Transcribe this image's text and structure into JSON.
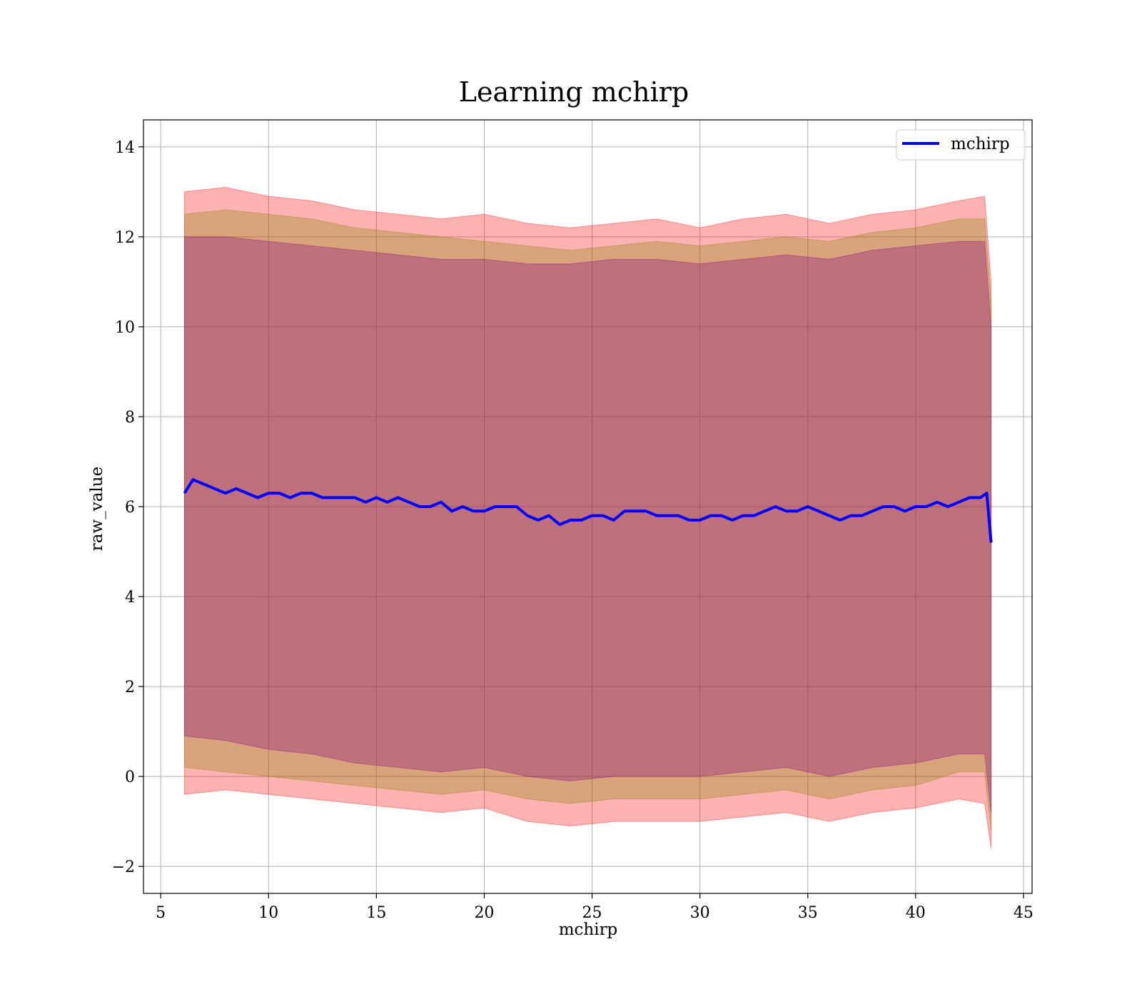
{
  "chart_data": {
    "type": "line",
    "title": "Learning mchirp",
    "xlabel": "mchirp",
    "ylabel": "raw_value",
    "xlim": [
      4.2,
      45.4
    ],
    "ylim": [
      -2.6,
      14.6
    ],
    "xticks": [
      5,
      10,
      15,
      20,
      25,
      30,
      35,
      40,
      45
    ],
    "yticks": [
      -2,
      0,
      2,
      4,
      6,
      8,
      10,
      12,
      14
    ],
    "xtick_labels": [
      "5",
      "10",
      "15",
      "20",
      "25",
      "30",
      "35",
      "40",
      "45"
    ],
    "ytick_labels": [
      "−2",
      "0",
      "2",
      "4",
      "6",
      "8",
      "10",
      "12",
      "14"
    ],
    "grid": true,
    "legend": {
      "position": "top-right",
      "entries": [
        "mchirp"
      ]
    },
    "series": [
      {
        "name": "mchirp",
        "color": "#0000ff",
        "x": [
          6.1,
          6.5,
          7.0,
          7.5,
          8.0,
          8.5,
          9.0,
          9.5,
          10.0,
          10.5,
          11.0,
          11.5,
          12.0,
          12.5,
          13.0,
          13.5,
          14.0,
          14.5,
          15.0,
          15.5,
          16.0,
          16.5,
          17.0,
          17.5,
          18.0,
          18.5,
          19.0,
          19.5,
          20.0,
          20.5,
          21.0,
          21.5,
          22.0,
          22.5,
          23.0,
          23.5,
          24.0,
          24.5,
          25.0,
          25.5,
          26.0,
          26.5,
          27.0,
          27.5,
          28.0,
          28.5,
          29.0,
          29.5,
          30.0,
          30.5,
          31.0,
          31.5,
          32.0,
          32.5,
          33.0,
          33.5,
          34.0,
          34.5,
          35.0,
          35.5,
          36.0,
          36.5,
          37.0,
          37.5,
          38.0,
          38.5,
          39.0,
          39.5,
          40.0,
          40.5,
          41.0,
          41.5,
          42.0,
          42.5,
          43.0,
          43.3,
          43.5
        ],
        "values": [
          6.3,
          6.6,
          6.5,
          6.4,
          6.3,
          6.4,
          6.3,
          6.2,
          6.3,
          6.3,
          6.2,
          6.3,
          6.3,
          6.2,
          6.2,
          6.2,
          6.2,
          6.1,
          6.2,
          6.1,
          6.2,
          6.1,
          6.0,
          6.0,
          6.1,
          5.9,
          6.0,
          5.9,
          5.9,
          6.0,
          6.0,
          6.0,
          5.8,
          5.7,
          5.8,
          5.6,
          5.7,
          5.7,
          5.8,
          5.8,
          5.7,
          5.9,
          5.9,
          5.9,
          5.8,
          5.8,
          5.8,
          5.7,
          5.7,
          5.8,
          5.8,
          5.7,
          5.8,
          5.8,
          5.9,
          6.0,
          5.9,
          5.9,
          6.0,
          5.9,
          5.8,
          5.7,
          5.8,
          5.8,
          5.9,
          6.0,
          6.0,
          5.9,
          6.0,
          6.0,
          6.1,
          6.0,
          6.1,
          6.2,
          6.2,
          6.3,
          5.2
        ]
      }
    ],
    "bands": [
      {
        "color": "#ff0000",
        "opacity": 0.3,
        "x": [
          6.1,
          8,
          10,
          12,
          14,
          16,
          18,
          20,
          22,
          24,
          26,
          28,
          30,
          32,
          34,
          36,
          38,
          40,
          42,
          43.2,
          43.5
        ],
        "upper": [
          13.0,
          13.1,
          12.9,
          12.8,
          12.6,
          12.5,
          12.4,
          12.5,
          12.3,
          12.2,
          12.3,
          12.4,
          12.2,
          12.4,
          12.5,
          12.3,
          12.5,
          12.6,
          12.8,
          12.9,
          11.0
        ],
        "lower": [
          -0.4,
          -0.3,
          -0.4,
          -0.5,
          -0.6,
          -0.7,
          -0.8,
          -0.7,
          -1.0,
          -1.1,
          -1.0,
          -1.0,
          -1.0,
          -0.9,
          -0.8,
          -1.0,
          -0.8,
          -0.7,
          -0.5,
          -0.6,
          -1.6
        ]
      },
      {
        "color": "#808000",
        "opacity": 0.3,
        "x": [
          6.1,
          8,
          10,
          12,
          14,
          16,
          18,
          20,
          22,
          24,
          26,
          28,
          30,
          32,
          34,
          36,
          38,
          40,
          42,
          43.2,
          43.5
        ],
        "upper": [
          12.5,
          12.6,
          12.5,
          12.4,
          12.2,
          12.1,
          12.0,
          11.9,
          11.8,
          11.7,
          11.8,
          11.9,
          11.8,
          11.9,
          12.0,
          11.9,
          12.1,
          12.2,
          12.4,
          12.4,
          10.5
        ],
        "lower": [
          0.2,
          0.1,
          0.0,
          -0.1,
          -0.2,
          -0.3,
          -0.4,
          -0.3,
          -0.5,
          -0.6,
          -0.5,
          -0.5,
          -0.5,
          -0.4,
          -0.3,
          -0.5,
          -0.3,
          -0.2,
          0.1,
          0.1,
          -1.2
        ]
      },
      {
        "color": "#800080",
        "opacity": 0.3,
        "x": [
          6.1,
          8,
          10,
          12,
          14,
          16,
          18,
          20,
          22,
          24,
          26,
          28,
          30,
          32,
          34,
          36,
          38,
          40,
          42,
          43.2,
          43.5
        ],
        "upper": [
          12.0,
          12.0,
          11.9,
          11.8,
          11.7,
          11.6,
          11.5,
          11.5,
          11.4,
          11.4,
          11.5,
          11.5,
          11.4,
          11.5,
          11.6,
          11.5,
          11.7,
          11.8,
          11.9,
          11.9,
          10.0
        ],
        "lower": [
          0.9,
          0.8,
          0.6,
          0.5,
          0.3,
          0.2,
          0.1,
          0.2,
          0.0,
          -0.1,
          0.0,
          0.0,
          0.0,
          0.1,
          0.2,
          0.0,
          0.2,
          0.3,
          0.5,
          0.5,
          -0.8
        ]
      }
    ]
  }
}
